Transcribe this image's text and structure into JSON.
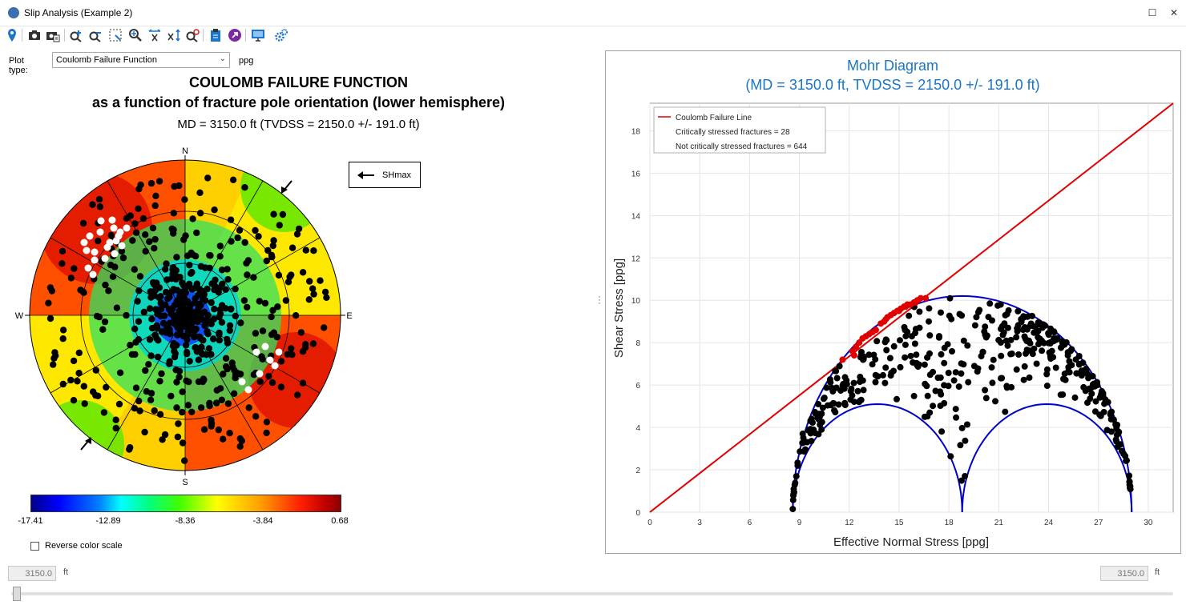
{
  "window": {
    "title": "Slip Analysis (Example 2)",
    "maximize_glyph": "☐",
    "close_glyph": "✕"
  },
  "toolbar": {
    "icons": [
      "map-pin-icon",
      "camera-icon",
      "copy-image-icon",
      "zoom-in-icon",
      "zoom-out-icon",
      "zoom-rectangle-icon",
      "zoom-search-icon",
      "stretch-horizontal-icon",
      "stretch-vertical-icon",
      "reset-zoom-icon",
      "clipboard-icon",
      "export-icon",
      "display-icon",
      "settings-icon"
    ]
  },
  "plot_type": {
    "label": "Plot type:",
    "value": "Coulomb Failure Function",
    "unit": "ppg"
  },
  "stereonet": {
    "title": "COULOMB FAILURE FUNCTION",
    "subtitle": "as a function of fracture pole orientation (lower hemisphere)",
    "depth_line": "MD = 3150.0 ft (TVDSS = 2150.0 +/- 191.0 ft)",
    "compass": {
      "n": "N",
      "s": "S",
      "e": "E",
      "w": "W"
    },
    "shmax_label": "SHmax",
    "colorbar_ticks": [
      "-17.41",
      "-12.89",
      "-8.36",
      "-3.84",
      "0.68"
    ],
    "colors": {
      "critical": "#ffffff",
      "noncritical": "#000000"
    }
  },
  "reverse_color_scale": {
    "label": "Reverse color scale",
    "checked": false
  },
  "chart_data": {
    "type": "scatter",
    "title": "Mohr Diagram",
    "subtitle": "(MD = 3150.0 ft, TVDSS = 2150.0 +/- 191.0 ft)",
    "xlabel": "Effective Normal Stress [ppg]",
    "ylabel": "Shear Stress [ppg]",
    "xlim": [
      0,
      31.5
    ],
    "ylim": [
      0,
      19.3
    ],
    "xticks": [
      0,
      3,
      6,
      9,
      12,
      15,
      18,
      21,
      24,
      27,
      30
    ],
    "yticks": [
      0,
      2,
      4,
      6,
      8,
      10,
      12,
      14,
      16,
      18
    ],
    "grid": true,
    "legend_position": "top-left",
    "failure_line": {
      "name": "Coulomb Failure Line",
      "color": "#e00000",
      "points": [
        [
          0,
          0
        ],
        [
          31.5,
          19.3
        ]
      ]
    },
    "mohr_circles": {
      "color": "#0000cc",
      "sigma3": 8.6,
      "sigma2": 18.8,
      "sigma1": 29.0
    },
    "series": [
      {
        "name": "Critically stressed fractures = 28",
        "color": "#e00000",
        "points": [
          [
            11.6,
            7.2
          ],
          [
            12.4,
            7.8
          ],
          [
            12.6,
            8.0
          ],
          [
            12.8,
            8.2
          ],
          [
            13.0,
            8.3
          ],
          [
            13.2,
            8.4
          ],
          [
            13.4,
            8.5
          ],
          [
            13.6,
            8.6
          ],
          [
            14.1,
            9.0
          ],
          [
            14.3,
            9.2
          ],
          [
            14.5,
            9.3
          ],
          [
            14.7,
            9.4
          ],
          [
            14.9,
            9.5
          ],
          [
            15.1,
            9.6
          ],
          [
            15.3,
            9.7
          ],
          [
            15.5,
            9.8
          ],
          [
            15.7,
            9.8
          ],
          [
            15.9,
            9.9
          ],
          [
            16.1,
            10.0
          ],
          [
            16.3,
            10.1
          ],
          [
            16.6,
            10.1
          ],
          [
            12.2,
            7.6
          ],
          [
            13.9,
            8.9
          ],
          [
            15.0,
            9.5
          ],
          [
            15.4,
            9.7
          ],
          [
            16.0,
            9.9
          ],
          [
            14.2,
            9.1
          ],
          [
            12.3,
            7.4
          ]
        ]
      },
      {
        "name": "Not critically stressed fractures = 644",
        "color": "#000000",
        "points": []
      }
    ]
  },
  "depth_slider": {
    "left_value": "3150.0",
    "right_value": "3150.0",
    "unit": "ft"
  }
}
